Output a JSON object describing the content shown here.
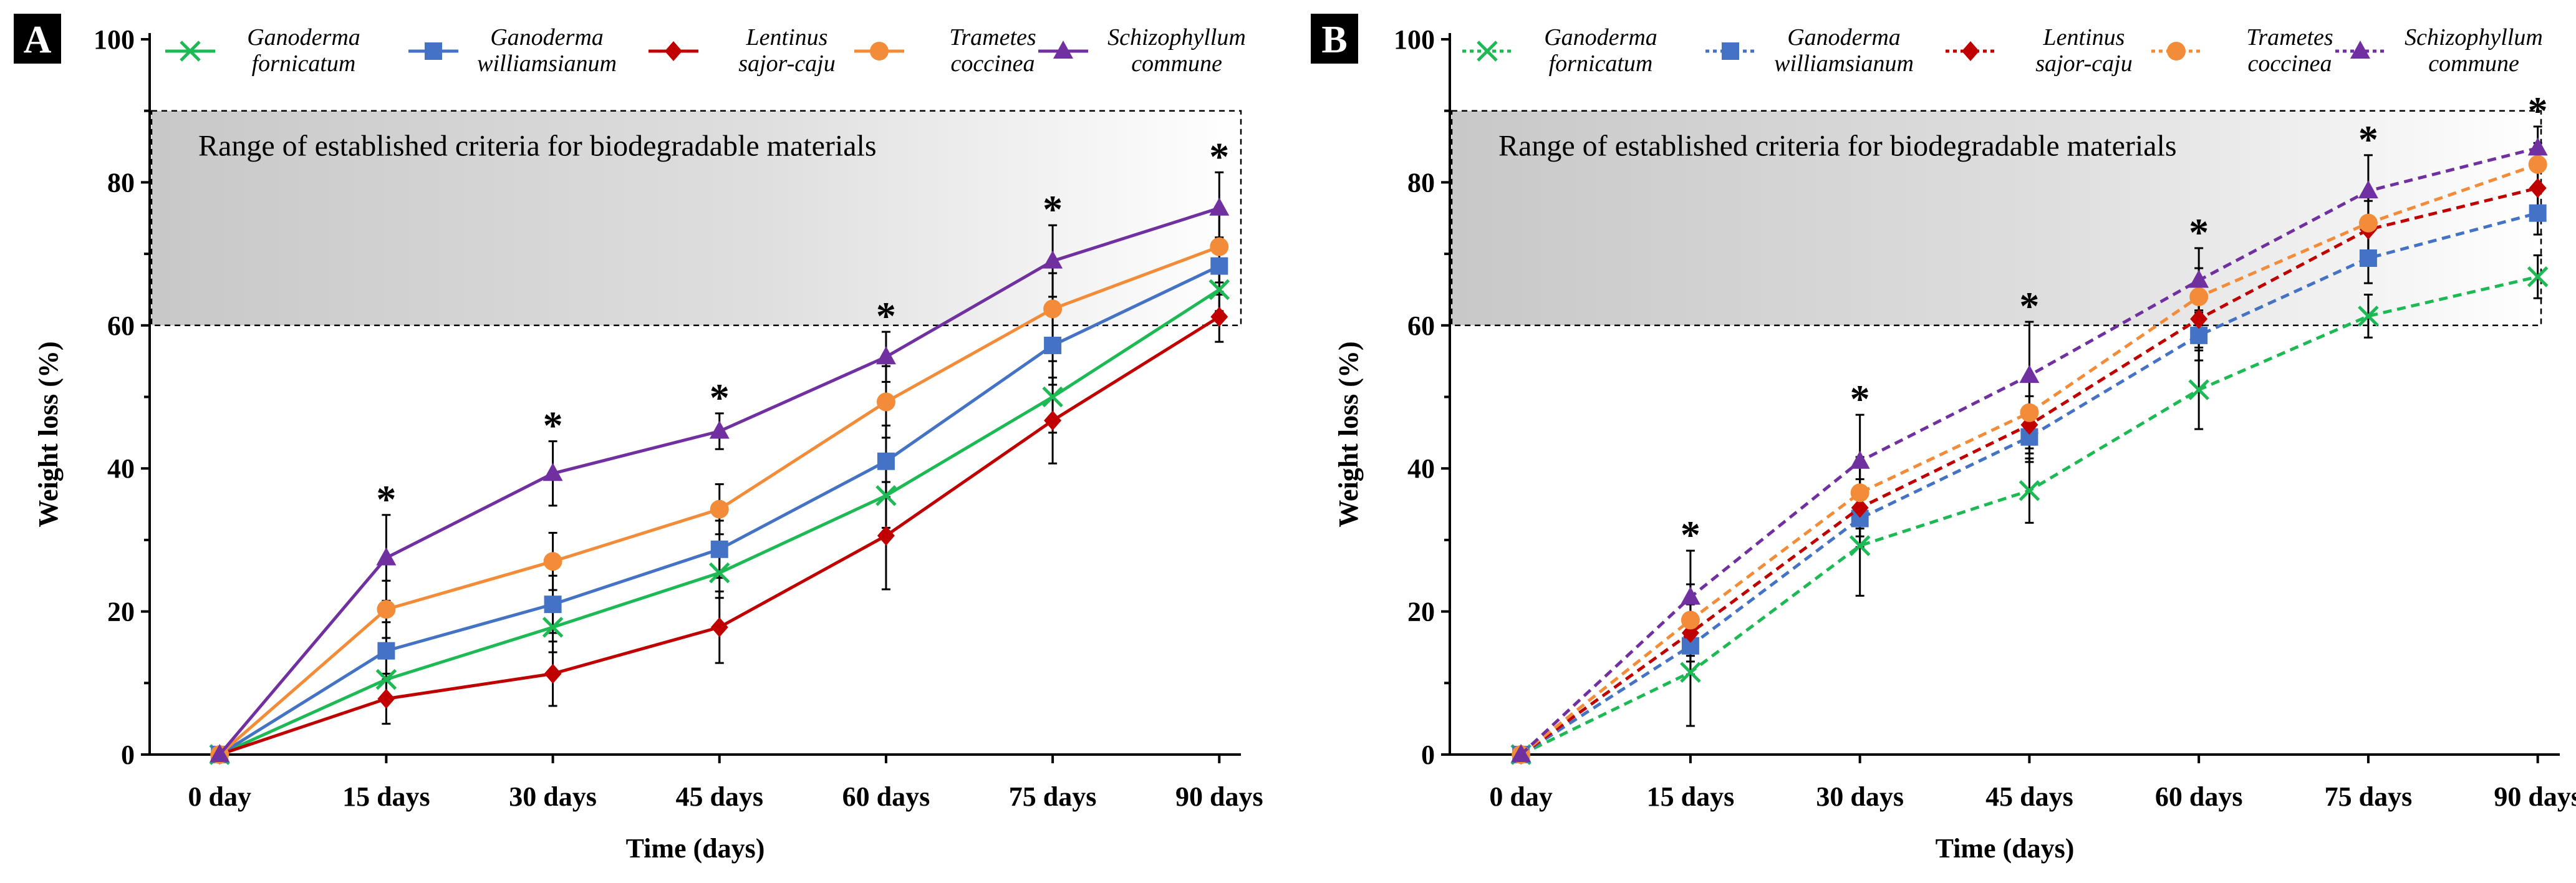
{
  "chart_data": [
    {
      "panel": "A",
      "type": "line",
      "line_style": "solid",
      "categories": [
        "0 day",
        "15 days",
        "30 days",
        "45 days",
        "60 days",
        "75 days",
        "90 days"
      ],
      "xlabel": "Time (days)",
      "ylabel": "Weight loss (%)",
      "ylim": [
        0,
        100
      ],
      "yticks": [
        "0",
        "20",
        "40",
        "60",
        "80",
        "100"
      ],
      "band": {
        "from": 60,
        "to": 90,
        "label": "Range of established criteria for biodegradable materials"
      },
      "stars": [
        {
          "index": 1,
          "label": "*"
        },
        {
          "index": 2,
          "label": "*"
        },
        {
          "index": 3,
          "label": "*"
        },
        {
          "index": 4,
          "label": "*"
        },
        {
          "index": 5,
          "label": "*"
        },
        {
          "index": 6,
          "label": "*"
        }
      ],
      "series": [
        {
          "name": "Ganoderma fornicatum",
          "label_line1": "Ganoderma",
          "label_line2": "fornicatum",
          "color": "#1db954",
          "marker": "x",
          "values": [
            0,
            10.5,
            17.8,
            25.4,
            36.2,
            50.0,
            65.0
          ],
          "errors": [
            0,
            3.0,
            3.5,
            3.5,
            4.5,
            5.0,
            3.0
          ]
        },
        {
          "name": "Ganoderma williamsianum",
          "label_line1": "Ganoderma",
          "label_line2": "williamsianum",
          "color": "#4472c4",
          "marker": "square",
          "values": [
            0,
            14.5,
            21.0,
            28.7,
            41.0,
            57.2,
            68.3
          ],
          "errors": [
            0,
            4.0,
            4.0,
            4.0,
            5.0,
            5.5,
            4.0
          ]
        },
        {
          "name": "Lentinus sajor-caju",
          "label_line1": "Lentinus",
          "label_line2": "sajor-caju",
          "color": "#c00000",
          "marker": "diamond",
          "values": [
            0,
            7.8,
            11.3,
            17.8,
            30.6,
            46.7,
            61.2
          ],
          "errors": [
            0,
            3.5,
            4.5,
            5.0,
            7.5,
            6.0,
            3.5
          ]
        },
        {
          "name": "Trametes coccinea",
          "label_line1": "Trametes",
          "label_line2": "coccinea",
          "color": "#f28c38",
          "marker": "circle",
          "values": [
            0,
            20.3,
            27.0,
            34.3,
            49.3,
            62.3,
            71.0
          ],
          "errors": [
            0,
            4.0,
            4.0,
            3.5,
            5.0,
            5.0,
            5.0
          ]
        },
        {
          "name": "Schizophyllum commune",
          "label_line1": "Schizophyllum",
          "label_line2": "commune",
          "color": "#7030a0",
          "marker": "triangle",
          "values": [
            0,
            27.5,
            39.3,
            45.2,
            55.6,
            69.0,
            76.4
          ],
          "errors": [
            0,
            6.0,
            4.5,
            2.5,
            3.5,
            5.0,
            5.0
          ]
        }
      ]
    },
    {
      "panel": "B",
      "type": "line",
      "line_style": "dashed",
      "categories": [
        "0 day",
        "15 days",
        "30 days",
        "45 days",
        "60 days",
        "75 days",
        "90 days"
      ],
      "xlabel": "Time (days)",
      "ylabel": "Weight loss (%)",
      "ylim": [
        0,
        100
      ],
      "yticks": [
        "0",
        "20",
        "40",
        "60",
        "80",
        "100"
      ],
      "band": {
        "from": 60,
        "to": 90,
        "label": "Range of established criteria for biodegradable materials"
      },
      "stars": [
        {
          "index": 1,
          "label": "*"
        },
        {
          "index": 2,
          "label": "*"
        },
        {
          "index": 3,
          "label": "*"
        },
        {
          "index": 4,
          "label": "*"
        },
        {
          "index": 5,
          "label": "*"
        },
        {
          "index": 6,
          "label": "*"
        }
      ],
      "series": [
        {
          "name": "Ganoderma fornicatum",
          "label_line1": "Ganoderma",
          "label_line2": "fornicatum",
          "color": "#1db954",
          "marker": "x",
          "values": [
            0,
            11.5,
            29.2,
            36.9,
            51.0,
            61.3,
            66.8
          ],
          "errors": [
            0,
            7.5,
            7.0,
            4.5,
            5.5,
            3.0,
            3.0
          ]
        },
        {
          "name": "Ganoderma williamsianum",
          "label_line1": "Ganoderma",
          "label_line2": "williamsianum",
          "color": "#4472c4",
          "marker": "square",
          "values": [
            0,
            15.2,
            33.0,
            44.4,
            58.6,
            69.4,
            75.7
          ],
          "errors": [
            0,
            4.0,
            4.0,
            3.5,
            3.5,
            3.5,
            3.0
          ]
        },
        {
          "name": "Lentinus sajor-caju",
          "label_line1": "Lentinus",
          "label_line2": "sajor-caju",
          "color": "#c00000",
          "marker": "diamond",
          "values": [
            0,
            17.0,
            34.5,
            46.1,
            60.9,
            73.4,
            79.2
          ],
          "errors": [
            0,
            4.0,
            4.0,
            4.0,
            4.0,
            4.0,
            3.5
          ]
        },
        {
          "name": "Trametes coccinea",
          "label_line1": "Trametes",
          "label_line2": "coccinea",
          "color": "#f28c38",
          "marker": "circle",
          "values": [
            0,
            18.8,
            36.6,
            47.8,
            64.0,
            74.3,
            82.5
          ],
          "errors": [
            0,
            5.0,
            5.0,
            5.0,
            4.0,
            4.0,
            3.0
          ]
        },
        {
          "name": "Schizophyllum commune",
          "label_line1": "Schizophyllum",
          "label_line2": "commune",
          "color": "#7030a0",
          "marker": "triangle",
          "values": [
            0,
            22.0,
            41.0,
            53.0,
            66.3,
            78.8,
            84.8
          ],
          "errors": [
            0,
            6.5,
            6.5,
            7.5,
            4.5,
            5.0,
            3.0
          ]
        }
      ]
    }
  ]
}
